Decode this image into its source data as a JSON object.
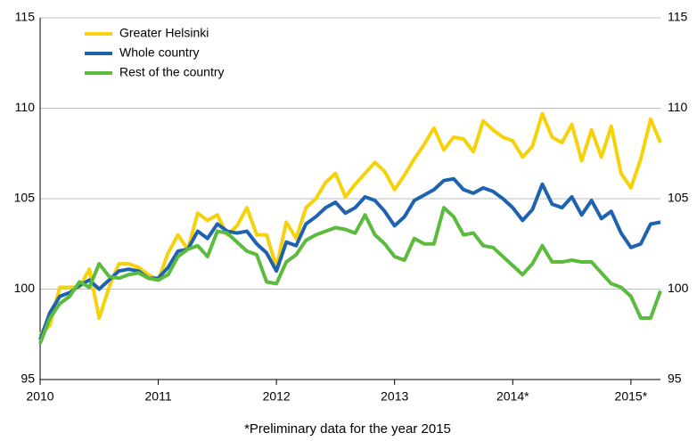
{
  "chart_data": {
    "type": "line",
    "footnote": "*Preliminary data for the year 2015",
    "categories": [
      "2010",
      null,
      null,
      null,
      null,
      null,
      null,
      null,
      null,
      null,
      null,
      null,
      "2011",
      null,
      null,
      null,
      null,
      null,
      null,
      null,
      null,
      null,
      null,
      null,
      "2012",
      null,
      null,
      null,
      null,
      null,
      null,
      null,
      null,
      null,
      null,
      null,
      "2013",
      null,
      null,
      null,
      null,
      null,
      null,
      null,
      null,
      null,
      null,
      null,
      "2014*",
      null,
      null,
      null,
      null,
      null,
      null,
      null,
      null,
      null,
      null,
      null,
      "2015*",
      null,
      null,
      null
    ],
    "series": [
      {
        "name": "Greater Helsinki",
        "color": "#f5d20a",
        "values": [
          97.5,
          98,
          100.1,
          100.1,
          100.1,
          101.1,
          98.4,
          100.1,
          101.4,
          101.4,
          101.2,
          100.8,
          100.5,
          102,
          103,
          102.2,
          104.2,
          103.8,
          104.1,
          103,
          103.5,
          104.5,
          103,
          103,
          101.2,
          103.7,
          102.8,
          104.5,
          105,
          105.9,
          106.4,
          105.1,
          105.8,
          106.4,
          107,
          106.5,
          105.5,
          106.3,
          107.2,
          108,
          108.9,
          107.7,
          108.4,
          108.3,
          107.6,
          109.3,
          108.8,
          108.4,
          108.2,
          107.3,
          107.9,
          109.7,
          108.4,
          108.1,
          109.1,
          107.1,
          108.8,
          107.3,
          109,
          106.4,
          105.6,
          107.2,
          109.4,
          108.1
        ]
      },
      {
        "name": "Whole country",
        "color": "#1f63b0",
        "values": [
          97.2,
          98.7,
          99.6,
          99.8,
          100.2,
          100.5,
          100,
          100.5,
          101,
          101.1,
          101,
          100.6,
          100.6,
          101.2,
          102.1,
          102.2,
          103.2,
          102.8,
          103.6,
          103.2,
          103.1,
          103.2,
          102.5,
          102,
          101,
          102.6,
          102.4,
          103.6,
          104,
          104.5,
          104.8,
          104.2,
          104.5,
          105.1,
          104.9,
          104.3,
          103.5,
          104,
          104.9,
          105.2,
          105.5,
          106,
          106.1,
          105.5,
          105.3,
          105.6,
          105.4,
          105,
          104.5,
          103.8,
          104.4,
          105.8,
          104.7,
          104.5,
          105.1,
          104.1,
          104.9,
          103.9,
          104.3,
          103.1,
          102.3,
          102.5,
          103.6,
          103.7
        ]
      },
      {
        "name": "Rest of the country",
        "color": "#5abb3c",
        "values": [
          97,
          98.4,
          99.2,
          99.6,
          100.4,
          100.1,
          101.4,
          100.7,
          100.6,
          100.8,
          100.9,
          100.6,
          100.5,
          100.8,
          101.8,
          102.2,
          102.4,
          101.8,
          103.2,
          103.1,
          102.6,
          102.1,
          101.9,
          100.4,
          100.3,
          101.5,
          101.9,
          102.7,
          103,
          103.2,
          103.4,
          103.3,
          103.1,
          104.1,
          103,
          102.5,
          101.8,
          101.6,
          102.8,
          102.5,
          102.5,
          104.5,
          104,
          103,
          103.1,
          102.4,
          102.3,
          101.8,
          101.3,
          100.8,
          101.4,
          102.4,
          101.5,
          101.5,
          101.6,
          101.5,
          101.5,
          100.9,
          100.3,
          100.1,
          99.6,
          98.4,
          98.4,
          99.9
        ]
      }
    ],
    "ylim": [
      95,
      115
    ],
    "yticks": [
      95,
      100,
      105,
      110,
      115
    ],
    "y2lim": [
      95,
      115
    ],
    "y2ticks": [
      95,
      100,
      105,
      110,
      115
    ],
    "grid": true,
    "legend": "top-left"
  }
}
